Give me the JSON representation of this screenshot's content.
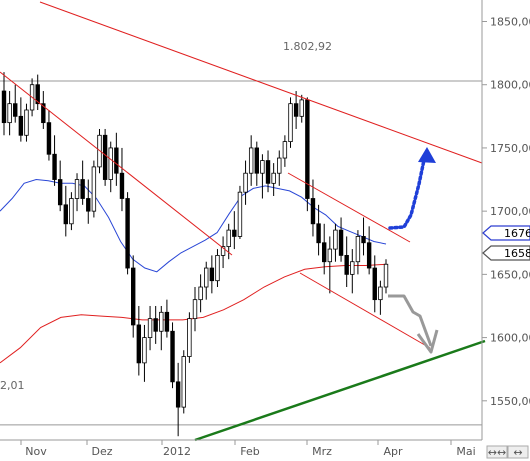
{
  "chart_data": {
    "type": "candlestick",
    "x_ticks": [
      "Nov",
      "Dez",
      "2012",
      "Feb",
      "Mrz",
      "Apr",
      "Mai"
    ],
    "y_ticks": [
      1550,
      1600,
      1650,
      1700,
      1750,
      1800,
      1850
    ],
    "y_tick_labels": [
      "1550,00",
      "1600,00",
      "1650,00",
      "1700,00",
      "1750,00",
      "1800,00",
      "1850,00"
    ],
    "ylim": [
      1519,
      1867
    ],
    "grid": false,
    "annotations": [
      {
        "text": "1.802,92",
        "level": 1802.92
      },
      {
        "text": "2,01",
        "level": 1531
      }
    ],
    "price_tags": [
      {
        "text": "1676",
        "value": 1676,
        "color": "#2e3fd0"
      },
      {
        "text": "1658",
        "value": 1658,
        "color": "#555555"
      }
    ],
    "horizontal_levels": [
      1802.92,
      1531
    ],
    "ohlc": [
      [
        1795,
        1810,
        1760,
        1770
      ],
      [
        1770,
        1795,
        1760,
        1785
      ],
      [
        1785,
        1800,
        1770,
        1775
      ],
      [
        1775,
        1790,
        1755,
        1760
      ],
      [
        1760,
        1785,
        1755,
        1780
      ],
      [
        1780,
        1805,
        1775,
        1800
      ],
      [
        1800,
        1808,
        1780,
        1785
      ],
      [
        1785,
        1795,
        1765,
        1770
      ],
      [
        1770,
        1780,
        1740,
        1745
      ],
      [
        1745,
        1760,
        1720,
        1725
      ],
      [
        1725,
        1740,
        1700,
        1705
      ],
      [
        1705,
        1720,
        1680,
        1690
      ],
      [
        1690,
        1715,
        1685,
        1710
      ],
      [
        1710,
        1730,
        1700,
        1725
      ],
      [
        1725,
        1740,
        1705,
        1710
      ],
      [
        1710,
        1725,
        1690,
        1700
      ],
      [
        1700,
        1740,
        1695,
        1735
      ],
      [
        1735,
        1765,
        1730,
        1760
      ],
      [
        1760,
        1765,
        1720,
        1725
      ],
      [
        1725,
        1755,
        1715,
        1750
      ],
      [
        1750,
        1762,
        1720,
        1730
      ],
      [
        1730,
        1750,
        1700,
        1710
      ],
      [
        1710,
        1715,
        1650,
        1655
      ],
      [
        1655,
        1665,
        1600,
        1610
      ],
      [
        1610,
        1625,
        1570,
        1580
      ],
      [
        1580,
        1610,
        1565,
        1600
      ],
      [
        1600,
        1625,
        1590,
        1615
      ],
      [
        1615,
        1625,
        1595,
        1605
      ],
      [
        1605,
        1625,
        1590,
        1620
      ],
      [
        1620,
        1630,
        1600,
        1605
      ],
      [
        1605,
        1612,
        1560,
        1565
      ],
      [
        1565,
        1580,
        1522,
        1545
      ],
      [
        1545,
        1590,
        1540,
        1585
      ],
      [
        1585,
        1620,
        1580,
        1615
      ],
      [
        1615,
        1640,
        1605,
        1630
      ],
      [
        1630,
        1650,
        1620,
        1640
      ],
      [
        1640,
        1660,
        1630,
        1655
      ],
      [
        1655,
        1665,
        1635,
        1645
      ],
      [
        1645,
        1670,
        1640,
        1665
      ],
      [
        1665,
        1680,
        1655,
        1672
      ],
      [
        1672,
        1690,
        1662,
        1685
      ],
      [
        1685,
        1700,
        1670,
        1680
      ],
      [
        1680,
        1720,
        1678,
        1715
      ],
      [
        1715,
        1740,
        1705,
        1730
      ],
      [
        1730,
        1760,
        1720,
        1750
      ],
      [
        1750,
        1755,
        1720,
        1730
      ],
      [
        1730,
        1745,
        1710,
        1740
      ],
      [
        1740,
        1748,
        1715,
        1722
      ],
      [
        1722,
        1738,
        1712,
        1730
      ],
      [
        1730,
        1748,
        1720,
        1742
      ],
      [
        1742,
        1760,
        1735,
        1755
      ],
      [
        1755,
        1790,
        1750,
        1785
      ],
      [
        1785,
        1795,
        1765,
        1775
      ],
      [
        1775,
        1792,
        1770,
        1788
      ],
      [
        1788,
        1790,
        1700,
        1710
      ],
      [
        1710,
        1725,
        1680,
        1690
      ],
      [
        1690,
        1705,
        1665,
        1675
      ],
      [
        1675,
        1690,
        1650,
        1660
      ],
      [
        1660,
        1680,
        1635,
        1670
      ],
      [
        1670,
        1690,
        1660,
        1685
      ],
      [
        1685,
        1695,
        1660,
        1665
      ],
      [
        1665,
        1680,
        1640,
        1650
      ],
      [
        1650,
        1670,
        1635,
        1660
      ],
      [
        1660,
        1685,
        1650,
        1680
      ],
      [
        1680,
        1695,
        1665,
        1675
      ],
      [
        1675,
        1688,
        1650,
        1655
      ],
      [
        1655,
        1665,
        1620,
        1630
      ],
      [
        1630,
        1645,
        1618,
        1640
      ],
      [
        1640,
        1662,
        1635,
        1658
      ]
    ],
    "ma_blue": [
      1700,
      1710,
      1722,
      1725,
      1724,
      1722,
      1722,
      1720,
      1710,
      1695,
      1676,
      1662,
      1655,
      1652,
      1660,
      1667,
      1672,
      1677,
      1683,
      1698,
      1712,
      1718,
      1720,
      1718,
      1716,
      1711,
      1703,
      1697,
      1688,
      1684,
      1680,
      1676,
      1674
    ],
    "ma_red": [
      1580,
      1592,
      1608,
      1616,
      1618,
      1617,
      1616,
      1614,
      1614,
      1614,
      1616,
      1622,
      1630,
      1640,
      1648,
      1654,
      1656,
      1657,
      1657,
      1658
    ],
    "trendlines": [
      {
        "name": "resistance-upper",
        "color": "#e02020"
      },
      {
        "name": "resistance-left",
        "color": "#e02020"
      },
      {
        "name": "channel-upper",
        "color": "#e02020"
      },
      {
        "name": "channel-lower",
        "color": "#e02020"
      },
      {
        "name": "support",
        "color": "#1a7a1a"
      }
    ],
    "projections": [
      {
        "name": "bullish-scenario",
        "color": "#1f3fd8",
        "style": "dotted-arrow"
      },
      {
        "name": "bearish-scenario",
        "color": "#999999",
        "style": "zigzag-arrow"
      }
    ]
  }
}
